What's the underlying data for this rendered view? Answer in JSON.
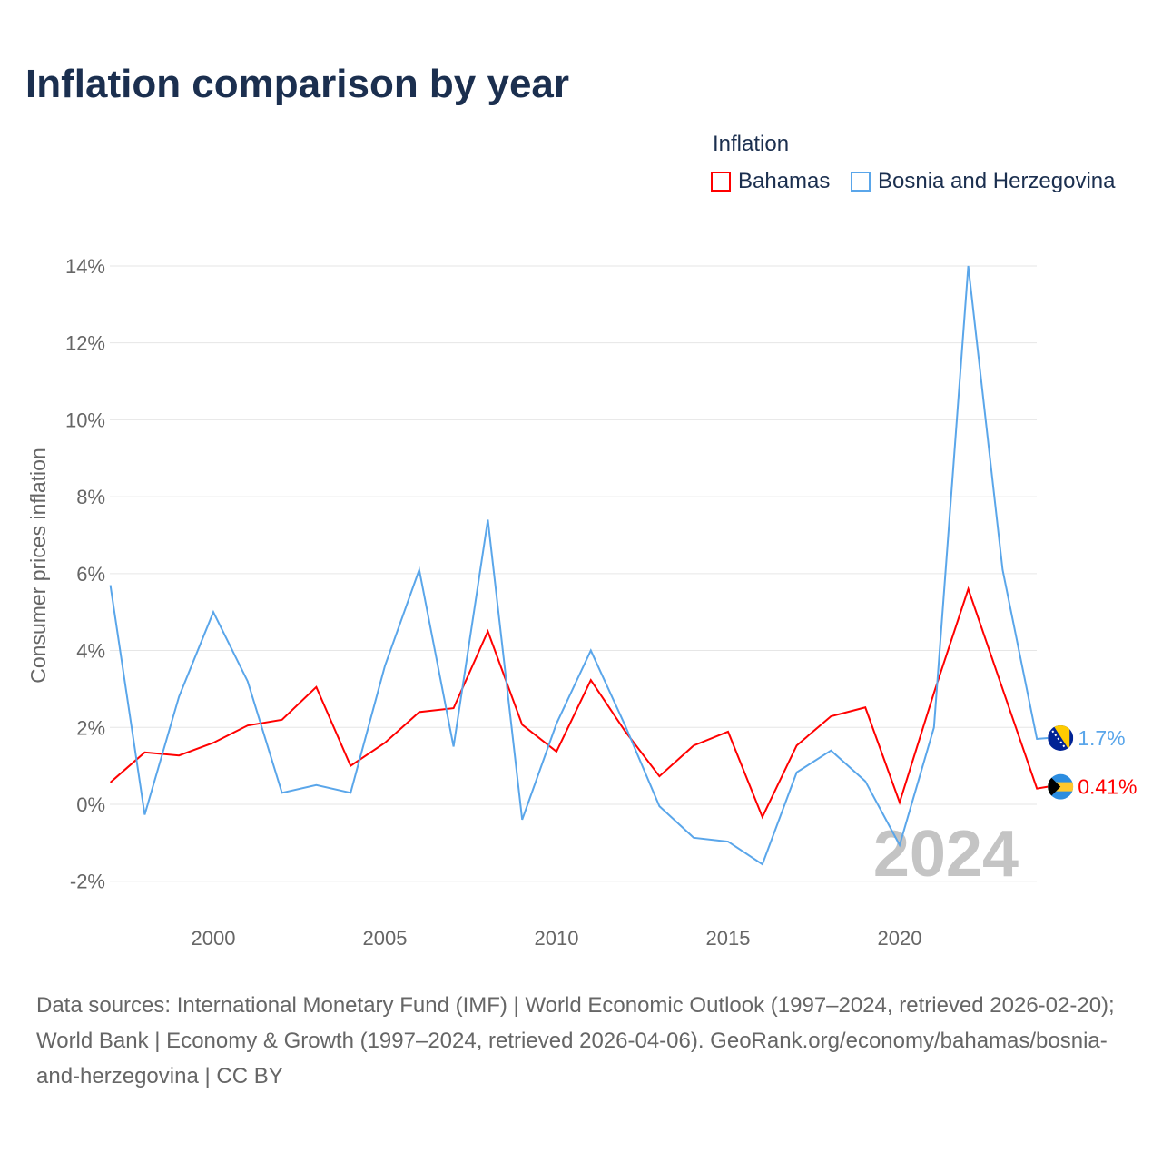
{
  "title": "Inflation comparison by year",
  "legend": {
    "title": "Inflation",
    "items": [
      {
        "name": "Bahamas",
        "color": "#ff0000"
      },
      {
        "name": "Bosnia and Herzegovina",
        "color": "#5aa6ea"
      }
    ]
  },
  "source": "Data sources: International Monetary Fund (IMF) | World Economic Outlook (1997–2024, retrieved 2026-02-20); World Bank | Economy & Growth (1997–2024, retrieved 2026-04-06). GeoRank.org/economy/bahamas/bosnia-and-herzegovina | CC BY",
  "chart_data": {
    "type": "line",
    "title": "Inflation comparison by year",
    "ylabel": "Consumer prices inflation",
    "xlabel": "",
    "year_watermark": "2024",
    "xlim": [
      1997,
      2024
    ],
    "ylim": [
      -2,
      14
    ],
    "yticks": [
      -2,
      0,
      2,
      4,
      6,
      8,
      10,
      12,
      14
    ],
    "ytick_labels": [
      "-2%",
      "0%",
      "2%",
      "4%",
      "6%",
      "8%",
      "10%",
      "12%",
      "14%"
    ],
    "xticks": [
      2000,
      2005,
      2010,
      2015,
      2020
    ],
    "xtick_labels": [
      "2000",
      "2005",
      "2010",
      "2015",
      "2020"
    ],
    "x": [
      1997,
      1998,
      1999,
      2000,
      2001,
      2002,
      2003,
      2004,
      2005,
      2006,
      2007,
      2008,
      2009,
      2010,
      2011,
      2012,
      2013,
      2014,
      2015,
      2016,
      2017,
      2018,
      2019,
      2020,
      2021,
      2022,
      2023,
      2024
    ],
    "series": [
      {
        "name": "Bahamas",
        "color": "#ff0000",
        "end_label": "0.41%",
        "values": [
          0.57,
          1.35,
          1.27,
          1.6,
          2.05,
          2.2,
          3.05,
          1.0,
          1.6,
          2.4,
          2.5,
          4.5,
          2.07,
          1.37,
          3.23,
          1.9,
          0.73,
          1.53,
          1.89,
          -0.33,
          1.53,
          2.29,
          2.52,
          0.05,
          2.9,
          5.6,
          3.0,
          0.41
        ]
      },
      {
        "name": "Bosnia and Herzegovina",
        "color": "#5aa6ea",
        "end_label": "1.7%",
        "values": [
          5.7,
          -0.27,
          2.8,
          5.0,
          3.2,
          0.3,
          0.5,
          0.3,
          3.6,
          6.1,
          1.5,
          7.4,
          -0.4,
          2.1,
          4.0,
          2.05,
          -0.05,
          -0.87,
          -0.97,
          -1.56,
          0.83,
          1.4,
          0.6,
          -1.06,
          2.0,
          14.0,
          6.1,
          1.7
        ]
      }
    ]
  }
}
